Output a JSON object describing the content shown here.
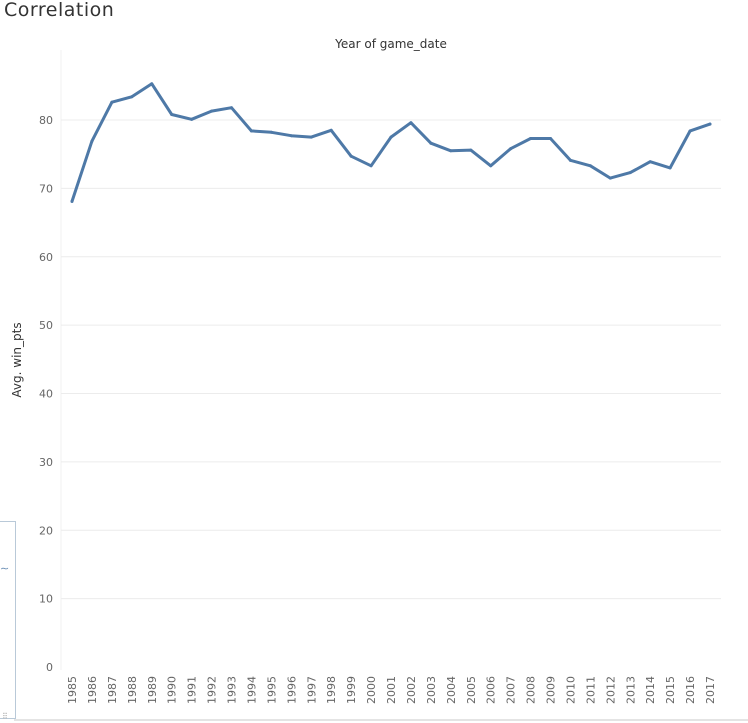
{
  "page": {
    "title": "Correlation"
  },
  "chart_data": {
    "type": "line",
    "title": "Year of game_date",
    "xlabel": "",
    "ylabel": "Avg. win_pts",
    "ylim": [
      0,
      90
    ],
    "yticks": [
      0,
      10,
      20,
      30,
      40,
      50,
      60,
      70,
      80
    ],
    "grid": true,
    "line_color": "#4e79a7",
    "categories": [
      "1985",
      "1986",
      "1987",
      "1988",
      "1989",
      "1990",
      "1991",
      "1992",
      "1993",
      "1994",
      "1995",
      "1996",
      "1997",
      "1998",
      "1999",
      "2000",
      "2001",
      "2002",
      "2003",
      "2004",
      "2005",
      "2006",
      "2007",
      "2008",
      "2009",
      "2010",
      "2011",
      "2012",
      "2013",
      "2014",
      "2015",
      "2016",
      "2017"
    ],
    "series": [
      {
        "name": "Avg. win_pts",
        "values": [
          68.1,
          76.9,
          82.6,
          83.4,
          85.3,
          80.8,
          80.1,
          81.3,
          81.8,
          78.4,
          78.2,
          77.7,
          77.5,
          78.5,
          74.7,
          73.3,
          77.5,
          79.6,
          76.6,
          75.5,
          75.6,
          73.3,
          75.8,
          77.3,
          77.3,
          74.1,
          73.3,
          71.5,
          72.3,
          73.9,
          73.0,
          78.4,
          79.4
        ]
      }
    ]
  }
}
